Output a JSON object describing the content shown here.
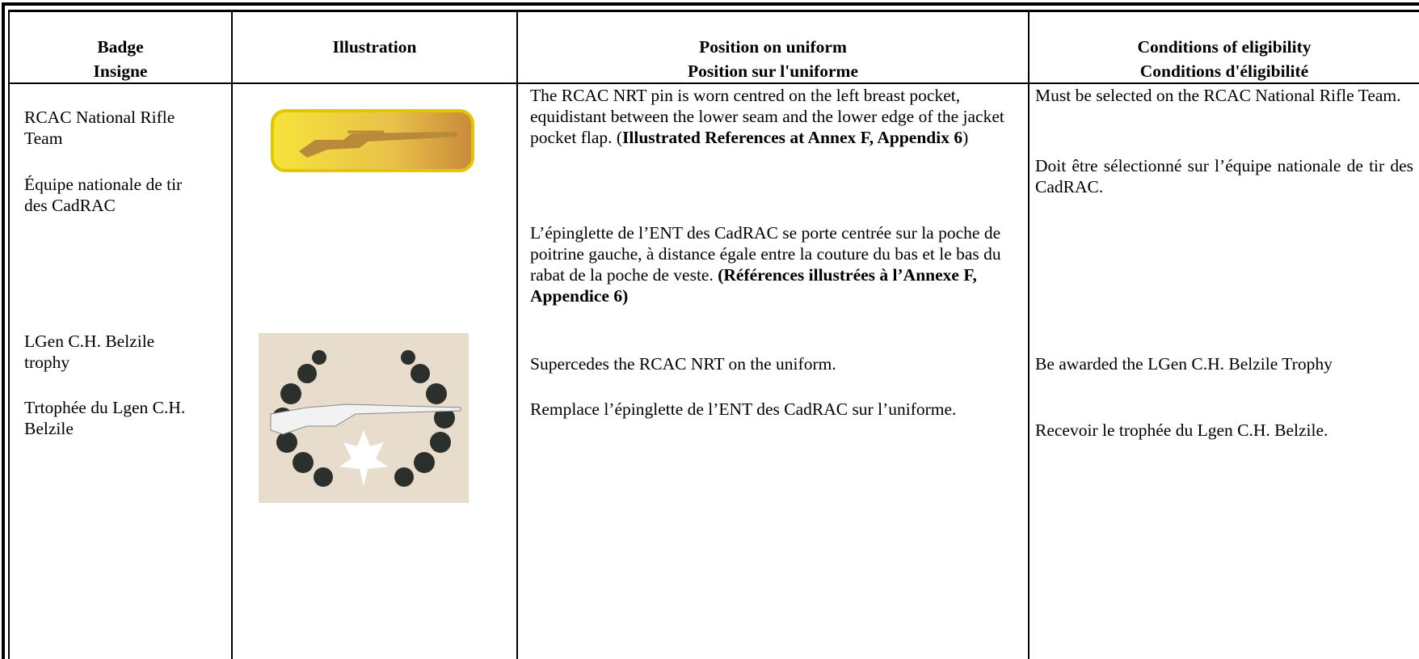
{
  "header": {
    "badge": [
      "Badge",
      "Insigne"
    ],
    "illustration": "Illustration",
    "position": [
      "Position on uniform",
      "Position sur l'uniforme"
    ],
    "conditions": [
      "Conditions of eligibility",
      "Conditions d'éligibilité"
    ]
  },
  "rows": [
    {
      "badge": {
        "en": "RCAC National Rifle Team",
        "fr": "Équipe nationale de tir des CadRAC"
      },
      "position": {
        "en": [
          "The RCAC NRT pin is worn centred on the left breast pocket, equidistant between the lower seam and the lower edge of the jacket pocket flap. (",
          "Illustrated References at Annex F, Appendix 6",
          ")"
        ],
        "fr": [
          "L’épinglette de l’ENT des CadRAC se porte centrée sur la poche de poitrine gauche, à distance égale entre la couture du bas et le bas du rabat de la poche de veste. ",
          "(Références illustrées à l’Annexe F, Appendice 6)"
        ]
      },
      "conditions": {
        "en": "Must be selected on the RCAC National Rifle Team.",
        "fr": "Doit être sélectionné sur l’équipe nationale de tir des CadRAC."
      }
    },
    {
      "badge": {
        "en": "LGen C.H. Belzile trophy",
        "fr": "Trtophée du Lgen C.H. Belzile"
      },
      "position": {
        "en": "Supercedes the RCAC NRT on the uniform.",
        "fr": "Remplace l’épinglette de l’ENT des CadRAC sur l’uniforme."
      },
      "conditions": {
        "en": "Be awarded the LGen C.H. Belzile Trophy",
        "fr": "Recevoir le trophée du Lgen C.H. Belzile."
      }
    }
  ]
}
